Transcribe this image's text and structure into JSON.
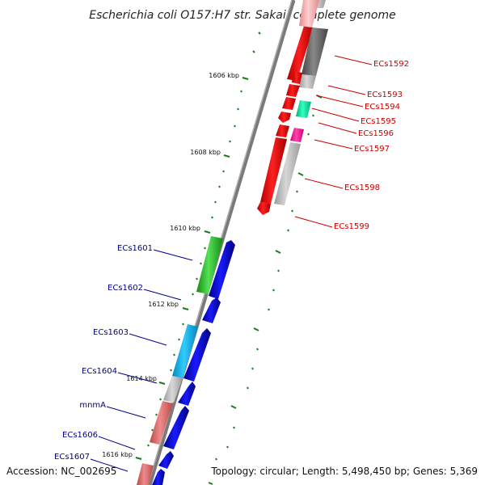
{
  "title": "Escherichia coli O157:H7 str. Sakai, complete genome",
  "footer": {
    "accession": "Accession: NC_002695",
    "summary": "Topology: circular; Length: 5,498,450 bp; Genes: 5,369"
  },
  "ticks": [
    "1606 kbp",
    "1608 kbp",
    "1610 kbp",
    "1612 kbp",
    "1614 kbp",
    "1616 kbp"
  ],
  "genes_right": [
    {
      "label": "ECs1592",
      "color": "#cc0000"
    },
    {
      "label": "ECs1593",
      "color": "#cc0000"
    },
    {
      "label": "ECs1594",
      "color": "#cc0000"
    },
    {
      "label": "ECs1595",
      "color": "#cc0000"
    },
    {
      "label": "ECs1596",
      "color": "#cc0000"
    },
    {
      "label": "ECs1597",
      "color": "#cc0000"
    },
    {
      "label": "ECs1598",
      "color": "#cc0000"
    },
    {
      "label": "ECs1599",
      "color": "#cc0000"
    }
  ],
  "genes_left": [
    {
      "label": "ECs1601",
      "color": "#00008b"
    },
    {
      "label": "ECs1602",
      "color": "#00008b"
    },
    {
      "label": "ECs1603",
      "color": "#00008b"
    },
    {
      "label": "ECs1604",
      "color": "#00008b"
    },
    {
      "label": "mnmA",
      "color": "#00008b"
    },
    {
      "label": "ECs1606",
      "color": "#00008b"
    },
    {
      "label": "ECs1607",
      "color": "#00008b"
    }
  ],
  "colors": {
    "forward_cds": "#0000ee",
    "reverse_cds": "#ee0000",
    "backbone": "#808080",
    "ticks": "#1a7a1a"
  }
}
